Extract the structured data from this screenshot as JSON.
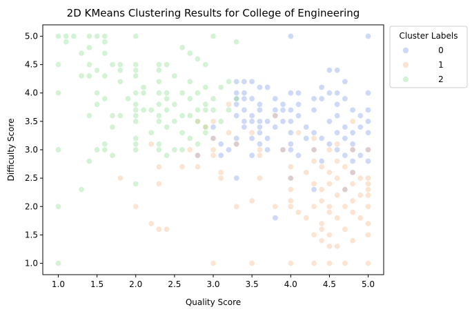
{
  "chart_data": {
    "type": "scatter",
    "title": "2D KMeans Clustering Results for College of Engineering",
    "xlabel": "Quality Score",
    "ylabel": "Difficulty Score",
    "xlim": [
      0.8,
      5.2
    ],
    "ylim": [
      0.8,
      5.2
    ],
    "xticks": [
      "1.0",
      "1.5",
      "2.0",
      "2.5",
      "3.0",
      "3.5",
      "4.0",
      "4.5",
      "5.0"
    ],
    "yticks": [
      "1.0",
      "1.5",
      "2.0",
      "2.5",
      "3.0",
      "3.5",
      "4.0",
      "4.5",
      "5.0"
    ],
    "grid": false,
    "legend": {
      "title": "Cluster Labels",
      "placement": "outside-top-right"
    },
    "series": [
      {
        "name": "0",
        "color": "#7b9bea",
        "points": [
          [
            4.0,
            5.0
          ],
          [
            5.0,
            5.0
          ],
          [
            4.5,
            4.4
          ],
          [
            4.6,
            4.4
          ],
          [
            3.3,
            4.2
          ],
          [
            3.4,
            4.2
          ],
          [
            3.5,
            4.2
          ],
          [
            4.7,
            4.2
          ],
          [
            3.6,
            4.1
          ],
          [
            3.7,
            4.1
          ],
          [
            4.4,
            4.1
          ],
          [
            3.3,
            4.0
          ],
          [
            3.4,
            4.0
          ],
          [
            4.0,
            4.0
          ],
          [
            4.1,
            4.0
          ],
          [
            4.5,
            4.0
          ],
          [
            4.6,
            4.0
          ],
          [
            5.0,
            4.0
          ],
          [
            3.3,
            3.9
          ],
          [
            3.4,
            3.9
          ],
          [
            3.5,
            3.9
          ],
          [
            3.8,
            3.9
          ],
          [
            4.3,
            3.9
          ],
          [
            4.4,
            3.9
          ],
          [
            4.7,
            3.9
          ],
          [
            3.3,
            3.8
          ],
          [
            3.6,
            3.8
          ],
          [
            3.9,
            3.8
          ],
          [
            4.1,
            3.8
          ],
          [
            4.6,
            3.8
          ],
          [
            3.4,
            3.7
          ],
          [
            3.6,
            3.7
          ],
          [
            3.8,
            3.7
          ],
          [
            3.9,
            3.7
          ],
          [
            4.0,
            3.7
          ],
          [
            4.3,
            3.7
          ],
          [
            4.8,
            3.7
          ],
          [
            5.0,
            3.7
          ],
          [
            3.3,
            3.6
          ],
          [
            3.5,
            3.6
          ],
          [
            3.8,
            3.6
          ],
          [
            4.1,
            3.6
          ],
          [
            4.6,
            3.6
          ],
          [
            4.9,
            3.6
          ],
          [
            3.4,
            3.5
          ],
          [
            3.5,
            3.5
          ],
          [
            3.6,
            3.5
          ],
          [
            3.7,
            3.5
          ],
          [
            3.9,
            3.5
          ],
          [
            4.0,
            3.5
          ],
          [
            4.5,
            3.5
          ],
          [
            5.0,
            3.5
          ],
          [
            3.0,
            3.4
          ],
          [
            3.4,
            3.4
          ],
          [
            3.6,
            3.4
          ],
          [
            3.8,
            3.4
          ],
          [
            4.2,
            3.4
          ],
          [
            4.7,
            3.4
          ],
          [
            4.9,
            3.4
          ],
          [
            3.6,
            3.3
          ],
          [
            4.0,
            3.3
          ],
          [
            4.3,
            3.3
          ],
          [
            4.6,
            3.3
          ],
          [
            4.8,
            3.3
          ],
          [
            5.0,
            3.3
          ],
          [
            3.0,
            3.2
          ],
          [
            3.3,
            3.2
          ],
          [
            3.5,
            3.2
          ],
          [
            3.7,
            3.2
          ],
          [
            4.2,
            3.2
          ],
          [
            4.4,
            3.2
          ],
          [
            4.7,
            3.2
          ],
          [
            3.1,
            3.1
          ],
          [
            3.3,
            3.1
          ],
          [
            3.6,
            3.1
          ],
          [
            4.0,
            3.1
          ],
          [
            4.5,
            3.1
          ],
          [
            4.8,
            3.1
          ],
          [
            3.2,
            3.0
          ],
          [
            3.7,
            3.0
          ],
          [
            3.9,
            3.0
          ],
          [
            4.0,
            3.0
          ],
          [
            4.3,
            3.0
          ],
          [
            4.6,
            3.0
          ],
          [
            4.8,
            3.0
          ],
          [
            5.0,
            3.0
          ],
          [
            2.8,
            2.9
          ],
          [
            3.1,
            2.9
          ],
          [
            3.5,
            2.9
          ],
          [
            4.1,
            2.9
          ],
          [
            4.7,
            2.9
          ],
          [
            4.9,
            2.9
          ],
          [
            4.4,
            2.8
          ],
          [
            4.8,
            2.8
          ],
          [
            5.0,
            2.8
          ],
          [
            4.8,
            2.6
          ],
          [
            3.3,
            2.5
          ],
          [
            4.0,
            2.5
          ],
          [
            4.3,
            2.3
          ],
          [
            4.7,
            2.3
          ],
          [
            3.8,
            1.8
          ]
        ]
      },
      {
        "name": "1",
        "color": "#f6b98a",
        "points": [
          [
            3.2,
            3.8
          ],
          [
            3.8,
            3.6
          ],
          [
            2.8,
            3.5
          ],
          [
            3.0,
            3.5
          ],
          [
            4.8,
            3.5
          ],
          [
            2.9,
            3.4
          ],
          [
            3.2,
            3.3
          ],
          [
            3.5,
            3.3
          ],
          [
            4.1,
            3.3
          ],
          [
            3.0,
            3.2
          ],
          [
            4.3,
            3.2
          ],
          [
            2.2,
            3.1
          ],
          [
            3.3,
            3.1
          ],
          [
            4.6,
            3.1
          ],
          [
            2.7,
            3.0
          ],
          [
            3.0,
            3.0
          ],
          [
            3.6,
            3.0
          ],
          [
            3.9,
            3.0
          ],
          [
            4.3,
            3.0
          ],
          [
            4.5,
            3.0
          ],
          [
            4.8,
            3.0
          ],
          [
            5.0,
            3.0
          ],
          [
            2.8,
            2.9
          ],
          [
            3.0,
            2.9
          ],
          [
            3.6,
            2.9
          ],
          [
            4.3,
            2.8
          ],
          [
            4.6,
            2.8
          ],
          [
            4.0,
            2.7
          ],
          [
            4.4,
            2.7
          ],
          [
            4.7,
            2.7
          ],
          [
            2.3,
            2.7
          ],
          [
            2.6,
            2.7
          ],
          [
            2.8,
            2.7
          ],
          [
            3.1,
            2.6
          ],
          [
            4.2,
            2.6
          ],
          [
            4.5,
            2.6
          ],
          [
            4.8,
            2.6
          ],
          [
            1.8,
            2.5
          ],
          [
            3.1,
            2.5
          ],
          [
            3.6,
            2.5
          ],
          [
            4.0,
            2.5
          ],
          [
            4.6,
            2.5
          ],
          [
            4.9,
            2.5
          ],
          [
            5.0,
            2.5
          ],
          [
            2.3,
            2.4
          ],
          [
            4.3,
            2.4
          ],
          [
            4.5,
            2.4
          ],
          [
            4.8,
            2.4
          ],
          [
            5.0,
            2.4
          ],
          [
            4.0,
            2.3
          ],
          [
            4.4,
            2.3
          ],
          [
            4.7,
            2.3
          ],
          [
            5.0,
            2.3
          ],
          [
            4.6,
            2.2
          ],
          [
            4.9,
            2.2
          ],
          [
            5.0,
            2.2
          ],
          [
            3.5,
            2.1
          ],
          [
            4.0,
            2.1
          ],
          [
            4.4,
            2.1
          ],
          [
            4.8,
            2.1
          ],
          [
            2.0,
            2.0
          ],
          [
            3.3,
            2.0
          ],
          [
            3.8,
            2.0
          ],
          [
            4.0,
            2.0
          ],
          [
            4.3,
            2.0
          ],
          [
            4.5,
            2.0
          ],
          [
            4.7,
            2.0
          ],
          [
            5.0,
            2.0
          ],
          [
            4.1,
            1.9
          ],
          [
            4.5,
            1.9
          ],
          [
            4.8,
            1.9
          ],
          [
            4.2,
            1.8
          ],
          [
            4.6,
            1.8
          ],
          [
            4.9,
            1.8
          ],
          [
            2.2,
            1.7
          ],
          [
            4.4,
            1.7
          ],
          [
            5.0,
            1.7
          ],
          [
            2.3,
            1.6
          ],
          [
            2.4,
            1.6
          ],
          [
            4.4,
            1.6
          ],
          [
            4.7,
            1.6
          ],
          [
            4.3,
            1.5
          ],
          [
            4.5,
            1.5
          ],
          [
            5.0,
            1.5
          ],
          [
            4.4,
            1.4
          ],
          [
            4.8,
            1.4
          ],
          [
            4.5,
            1.3
          ],
          [
            4.6,
            1.3
          ],
          [
            3.0,
            1.0
          ],
          [
            3.5,
            1.0
          ],
          [
            4.0,
            1.0
          ],
          [
            4.3,
            1.0
          ],
          [
            4.5,
            1.0
          ],
          [
            4.7,
            1.0
          ],
          [
            5.0,
            1.0
          ]
        ]
      },
      {
        "name": "2",
        "color": "#8fdc8f",
        "points": [
          [
            1.0,
            5.0
          ],
          [
            1.1,
            5.0
          ],
          [
            1.2,
            5.0
          ],
          [
            1.4,
            5.0
          ],
          [
            1.5,
            5.0
          ],
          [
            1.6,
            5.0
          ],
          [
            2.0,
            5.0
          ],
          [
            3.0,
            5.0
          ],
          [
            1.1,
            4.9
          ],
          [
            1.6,
            4.9
          ],
          [
            3.3,
            4.9
          ],
          [
            1.4,
            4.8
          ],
          [
            2.6,
            4.8
          ],
          [
            1.3,
            4.7
          ],
          [
            1.6,
            4.7
          ],
          [
            2.7,
            4.7
          ],
          [
            2.8,
            4.6
          ],
          [
            1.0,
            4.5
          ],
          [
            1.4,
            4.5
          ],
          [
            1.7,
            4.5
          ],
          [
            1.8,
            4.5
          ],
          [
            2.0,
            4.5
          ],
          [
            2.3,
            4.5
          ],
          [
            2.4,
            4.5
          ],
          [
            2.9,
            4.5
          ],
          [
            1.5,
            4.4
          ],
          [
            1.8,
            4.4
          ],
          [
            2.0,
            4.4
          ],
          [
            2.3,
            4.4
          ],
          [
            1.3,
            4.3
          ],
          [
            1.4,
            4.3
          ],
          [
            1.6,
            4.3
          ],
          [
            2.0,
            4.3
          ],
          [
            2.5,
            4.3
          ],
          [
            2.3,
            4.2
          ],
          [
            2.7,
            4.2
          ],
          [
            3.2,
            4.2
          ],
          [
            1.8,
            4.2
          ],
          [
            2.1,
            4.1
          ],
          [
            2.9,
            4.1
          ],
          [
            3.1,
            4.1
          ],
          [
            1.0,
            4.0
          ],
          [
            1.5,
            4.0
          ],
          [
            2.0,
            4.0
          ],
          [
            2.1,
            4.0
          ],
          [
            2.3,
            4.0
          ],
          [
            2.4,
            4.0
          ],
          [
            2.6,
            4.0
          ],
          [
            2.8,
            4.0
          ],
          [
            1.6,
            3.9
          ],
          [
            1.9,
            3.9
          ],
          [
            2.4,
            3.9
          ],
          [
            2.7,
            3.9
          ],
          [
            3.0,
            3.9
          ],
          [
            3.3,
            3.9
          ],
          [
            1.5,
            3.8
          ],
          [
            2.0,
            3.8
          ],
          [
            2.5,
            3.8
          ],
          [
            2.3,
            3.8
          ],
          [
            2.9,
            3.8
          ],
          [
            2.0,
            3.7
          ],
          [
            2.1,
            3.7
          ],
          [
            2.2,
            3.7
          ],
          [
            2.4,
            3.7
          ],
          [
            2.8,
            3.7
          ],
          [
            2.9,
            3.7
          ],
          [
            3.0,
            3.7
          ],
          [
            3.2,
            3.7
          ],
          [
            1.4,
            3.6
          ],
          [
            1.7,
            3.6
          ],
          [
            1.8,
            3.6
          ],
          [
            2.0,
            3.6
          ],
          [
            2.3,
            3.6
          ],
          [
            2.6,
            3.6
          ],
          [
            2.7,
            3.6
          ],
          [
            2.0,
            3.5
          ],
          [
            2.3,
            3.5
          ],
          [
            2.5,
            3.5
          ],
          [
            2.8,
            3.5
          ],
          [
            3.1,
            3.5
          ],
          [
            1.7,
            3.4
          ],
          [
            2.4,
            3.4
          ],
          [
            2.9,
            3.4
          ],
          [
            2.2,
            3.3
          ],
          [
            2.6,
            3.3
          ],
          [
            2.9,
            3.3
          ],
          [
            2.0,
            3.2
          ],
          [
            2.7,
            3.2
          ],
          [
            1.6,
            3.1
          ],
          [
            2.0,
            3.1
          ],
          [
            2.3,
            3.1
          ],
          [
            2.8,
            3.1
          ],
          [
            1.0,
            3.0
          ],
          [
            1.5,
            3.0
          ],
          [
            1.6,
            3.0
          ],
          [
            2.0,
            3.0
          ],
          [
            2.3,
            3.0
          ],
          [
            2.5,
            3.0
          ],
          [
            2.6,
            3.0
          ],
          [
            1.7,
            2.9
          ],
          [
            2.4,
            2.9
          ],
          [
            1.4,
            2.8
          ],
          [
            2.0,
            2.4
          ],
          [
            1.3,
            2.3
          ],
          [
            1.0,
            2.0
          ],
          [
            1.0,
            1.0
          ]
        ]
      }
    ]
  }
}
